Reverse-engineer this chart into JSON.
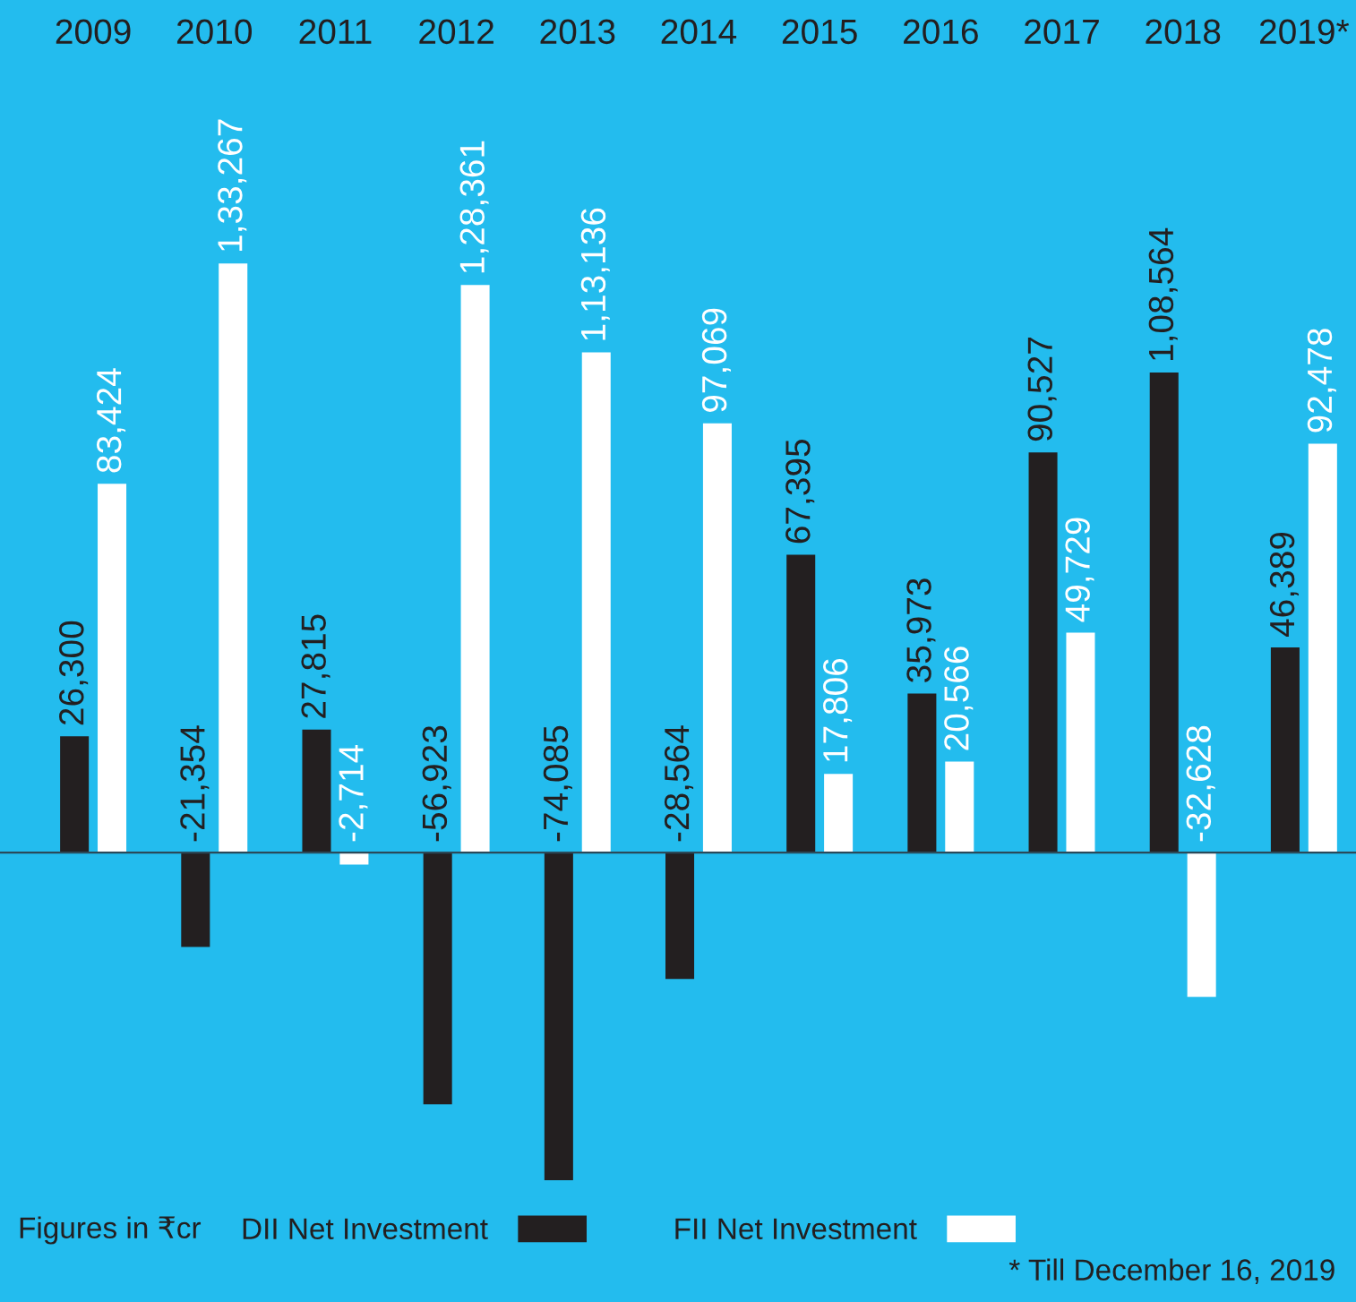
{
  "chart_data": {
    "type": "bar",
    "categories": [
      "2009",
      "2010",
      "2011",
      "2012",
      "2013",
      "2014",
      "2015",
      "2016",
      "2017",
      "2018",
      "2019*"
    ],
    "series": [
      {
        "name": "DII Net Investment",
        "color": "#231f20",
        "values": [
          26300,
          -21354,
          27815,
          -56923,
          -74085,
          -28564,
          67395,
          35973,
          90527,
          108564,
          46389
        ],
        "value_labels": [
          "26,300",
          "-21,354",
          "27,815",
          "-56,923",
          "-74,085",
          "-28,564",
          "67,395",
          "35,973",
          "90,527",
          "1,08,564",
          "46,389"
        ]
      },
      {
        "name": "FII Net Investment",
        "color": "#ffffff",
        "values": [
          83424,
          133267,
          -2714,
          128361,
          113136,
          97069,
          17806,
          20566,
          49729,
          -32628,
          92478
        ],
        "value_labels": [
          "83,424",
          "1,33,267",
          "-2,714",
          "1,28,361",
          "1,13,136",
          "97,069",
          "17,806",
          "20,566",
          "49,729",
          "-32,628",
          "92,478"
        ]
      }
    ],
    "legend_title": "Figures in ₹cr",
    "legend": "bottom",
    "annotations": [
      "* Till December 16, 2019"
    ]
  }
}
